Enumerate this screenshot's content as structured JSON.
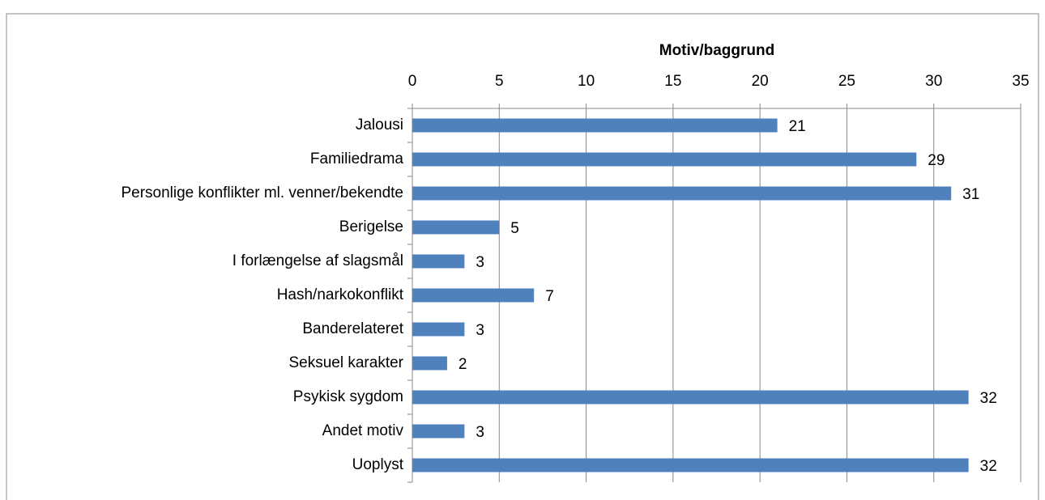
{
  "chart_data": {
    "type": "bar",
    "orientation": "horizontal",
    "title": "Motiv/baggrund",
    "categories": [
      "Jalousi",
      "Familiedrama",
      "Personlige konflikter ml. venner/bekendte",
      "Berigelse",
      "I forlængelse af slagsmål",
      "Hash/narkokonflikt",
      "Banderelateret",
      "Seksuel karakter",
      "Psykisk sygdom",
      "Andet motiv",
      "Uoplyst"
    ],
    "values": [
      21,
      29,
      31,
      5,
      3,
      7,
      3,
      2,
      32,
      3,
      32
    ],
    "color": "#4f81bd",
    "xlim": [
      0,
      35
    ],
    "xticks": [
      0,
      5,
      10,
      15,
      20,
      25,
      30,
      35
    ],
    "grid": true
  }
}
